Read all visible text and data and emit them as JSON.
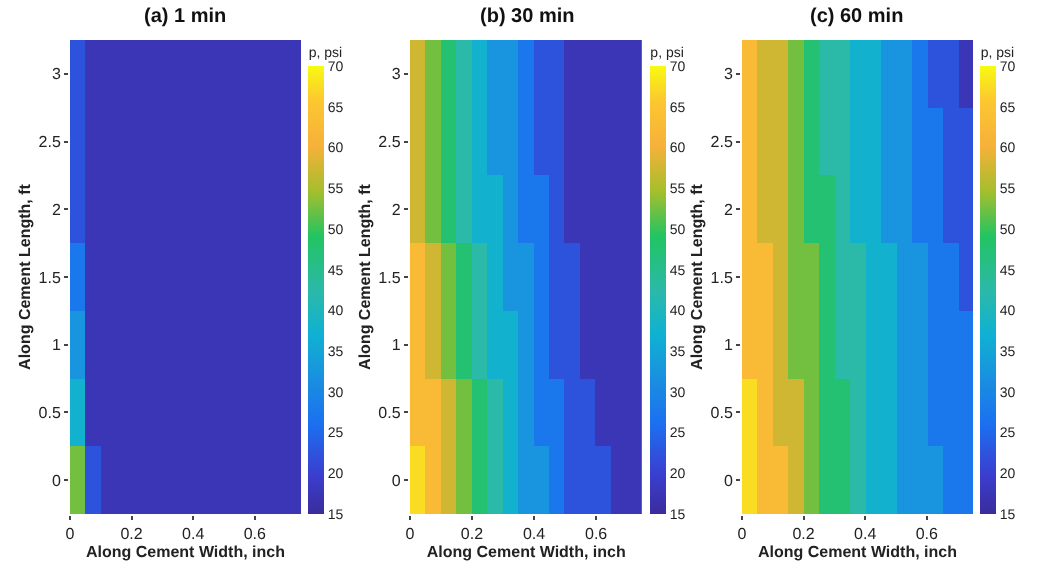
{
  "chart_data": [
    {
      "type": "heatmap",
      "title": "(a) 1 min",
      "xlabel": "Along Cement Width, inch",
      "ylabel": "Along Cement Length, ft",
      "clabel": "p, psi",
      "x": [
        0.025,
        0.075,
        0.125,
        0.175,
        0.225,
        0.275,
        0.325,
        0.375,
        0.425,
        0.475,
        0.525,
        0.575,
        0.625,
        0.675,
        0.725
      ],
      "y_categories": [
        "3",
        "2.5",
        "2",
        "1.5",
        "1",
        "0.5",
        "0"
      ],
      "cells": [
        [
          22.5,
          17.5,
          17.5,
          17.5,
          17.5,
          17.5,
          17.5,
          17.5,
          17.5,
          17.5,
          17.5,
          17.5,
          17.5,
          17.5,
          17.5
        ],
        [
          22.5,
          17.5,
          17.5,
          17.5,
          17.5,
          17.5,
          17.5,
          17.5,
          17.5,
          17.5,
          17.5,
          17.5,
          17.5,
          17.5,
          17.5
        ],
        [
          22.5,
          17.5,
          17.5,
          17.5,
          17.5,
          17.5,
          17.5,
          17.5,
          17.5,
          17.5,
          17.5,
          17.5,
          17.5,
          17.5,
          17.5
        ],
        [
          27.5,
          17.5,
          17.5,
          17.5,
          17.5,
          17.5,
          17.5,
          17.5,
          17.5,
          17.5,
          17.5,
          17.5,
          17.5,
          17.5,
          17.5
        ],
        [
          32.5,
          17.5,
          17.5,
          17.5,
          17.5,
          17.5,
          17.5,
          17.5,
          17.5,
          17.5,
          17.5,
          17.5,
          17.5,
          17.5,
          17.5
        ],
        [
          37.5,
          17.5,
          17.5,
          17.5,
          17.5,
          17.5,
          17.5,
          17.5,
          17.5,
          17.5,
          17.5,
          17.5,
          17.5,
          17.5,
          17.5
        ],
        [
          52.5,
          22.5,
          17.5,
          17.5,
          17.5,
          17.5,
          17.5,
          17.5,
          17.5,
          17.5,
          17.5,
          17.5,
          17.5,
          17.5,
          17.5
        ]
      ],
      "xlim": [
        0,
        0.75
      ],
      "xticks": [
        0,
        0.2,
        0.4,
        0.6
      ],
      "clim": [
        15,
        70
      ],
      "cticks": [
        15,
        20,
        25,
        30,
        35,
        40,
        45,
        50,
        55,
        60,
        65,
        70
      ]
    },
    {
      "type": "heatmap",
      "title": "(b) 30 min",
      "xlabel": "Along Cement Width, inch",
      "ylabel": "Along Cement Length, ft",
      "clabel": "p, psi",
      "x": [
        0.025,
        0.075,
        0.125,
        0.175,
        0.225,
        0.275,
        0.325,
        0.375,
        0.425,
        0.475,
        0.525,
        0.575,
        0.625,
        0.675,
        0.725
      ],
      "y_categories": [
        "3",
        "2.5",
        "2",
        "1.5",
        "1",
        "0.5",
        "0"
      ],
      "cells": [
        [
          57.5,
          52.5,
          47.5,
          42.5,
          37.5,
          32.5,
          32.5,
          27.5,
          22.5,
          22.5,
          17.5,
          17.5,
          17.5,
          17.5,
          17.5
        ],
        [
          57.5,
          52.5,
          47.5,
          42.5,
          37.5,
          32.5,
          32.5,
          27.5,
          22.5,
          22.5,
          17.5,
          17.5,
          17.5,
          17.5,
          17.5
        ],
        [
          57.5,
          52.5,
          47.5,
          42.5,
          37.5,
          37.5,
          32.5,
          27.5,
          27.5,
          22.5,
          17.5,
          17.5,
          17.5,
          17.5,
          17.5
        ],
        [
          62.5,
          57.5,
          52.5,
          47.5,
          42.5,
          37.5,
          32.5,
          32.5,
          27.5,
          22.5,
          22.5,
          17.5,
          17.5,
          17.5,
          17.5
        ],
        [
          62.5,
          57.5,
          52.5,
          47.5,
          42.5,
          37.5,
          37.5,
          32.5,
          27.5,
          22.5,
          22.5,
          17.5,
          17.5,
          17.5,
          17.5
        ],
        [
          62.5,
          62.5,
          57.5,
          52.5,
          47.5,
          42.5,
          37.5,
          32.5,
          27.5,
          27.5,
          22.5,
          22.5,
          17.5,
          17.5,
          17.5
        ],
        [
          67.5,
          62.5,
          57.5,
          52.5,
          47.5,
          42.5,
          37.5,
          32.5,
          32.5,
          27.5,
          22.5,
          22.5,
          22.5,
          17.5,
          17.5
        ]
      ],
      "xlim": [
        0,
        0.75
      ],
      "xticks": [
        0,
        0.2,
        0.4,
        0.6
      ],
      "clim": [
        15,
        70
      ],
      "cticks": [
        15,
        20,
        25,
        30,
        35,
        40,
        45,
        50,
        55,
        60,
        65,
        70
      ]
    },
    {
      "type": "heatmap",
      "title": "(c) 60 min",
      "xlabel": "Along Cement Width, inch",
      "ylabel": "Along Cement Length, ft",
      "clabel": "p, psi",
      "x": [
        0.025,
        0.075,
        0.125,
        0.175,
        0.225,
        0.275,
        0.325,
        0.375,
        0.425,
        0.475,
        0.525,
        0.575,
        0.625,
        0.675,
        0.725
      ],
      "y_categories": [
        "3",
        "2.5",
        "2",
        "1.5",
        "1",
        "0.5",
        "0"
      ],
      "cells": [
        [
          62.5,
          57.5,
          57.5,
          52.5,
          47.5,
          42.5,
          42.5,
          37.5,
          37.5,
          32.5,
          32.5,
          27.5,
          22.5,
          22.5,
          17.5
        ],
        [
          62.5,
          57.5,
          57.5,
          52.5,
          47.5,
          42.5,
          42.5,
          37.5,
          37.5,
          32.5,
          32.5,
          27.5,
          27.5,
          22.5,
          22.5
        ],
        [
          62.5,
          57.5,
          57.5,
          52.5,
          47.5,
          47.5,
          42.5,
          37.5,
          37.5,
          32.5,
          32.5,
          27.5,
          27.5,
          22.5,
          22.5
        ],
        [
          62.5,
          62.5,
          57.5,
          52.5,
          52.5,
          47.5,
          42.5,
          42.5,
          37.5,
          37.5,
          32.5,
          32.5,
          27.5,
          27.5,
          22.5
        ],
        [
          62.5,
          62.5,
          57.5,
          52.5,
          52.5,
          47.5,
          42.5,
          42.5,
          37.5,
          37.5,
          32.5,
          32.5,
          27.5,
          27.5,
          27.5
        ],
        [
          67.5,
          62.5,
          57.5,
          57.5,
          52.5,
          47.5,
          47.5,
          42.5,
          37.5,
          37.5,
          32.5,
          32.5,
          27.5,
          27.5,
          27.5
        ],
        [
          67.5,
          62.5,
          62.5,
          57.5,
          52.5,
          47.5,
          47.5,
          42.5,
          37.5,
          37.5,
          32.5,
          32.5,
          32.5,
          27.5,
          27.5
        ]
      ],
      "xlim": [
        0,
        0.75
      ],
      "xticks": [
        0,
        0.2,
        0.4,
        0.6
      ],
      "clim": [
        15,
        70
      ],
      "cticks": [
        15,
        20,
        25,
        30,
        35,
        40,
        45,
        50,
        55,
        60,
        65,
        70
      ]
    }
  ]
}
